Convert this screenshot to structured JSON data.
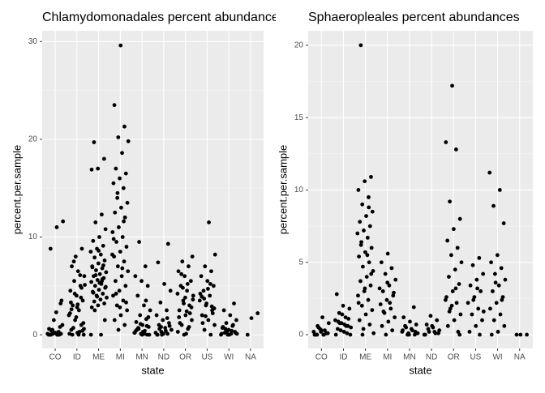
{
  "chart_data": [
    {
      "type": "strip",
      "title": "Chlamydomonadales percent abundances",
      "x_label": "state",
      "y_label": "percent.per.sample",
      "categories": [
        "CO",
        "ID",
        "ME",
        "MI",
        "MN",
        "ND",
        "OR",
        "US",
        "WI",
        "NA"
      ],
      "ylim": [
        -1.4,
        31.1
      ],
      "yticks": [
        0,
        10,
        20,
        30
      ],
      "grid": true,
      "color": "#000000",
      "values": [
        [
          0,
          0,
          0.1,
          0.2,
          0,
          0.3,
          0.5,
          1,
          2.3,
          0,
          0.8,
          1.5,
          0.1,
          0,
          0.4,
          3.5,
          0.2,
          0.6,
          0,
          0.1,
          11.6,
          11,
          8.8,
          3.2
        ],
        [
          0,
          0.2,
          0.5,
          1,
          1.5,
          2,
          2.5,
          3,
          3.5,
          4,
          4.5,
          5,
          5.5,
          6,
          6.5,
          7,
          8.8,
          8,
          0.1,
          0.3,
          0.7,
          1.2,
          2.8,
          3.3,
          3.8,
          4.2,
          5.1,
          0,
          0,
          0.4,
          1.8,
          2.2,
          6.1,
          7.5,
          0.6,
          3.1,
          2.6,
          4.8
        ],
        [
          19.7,
          18,
          17,
          16.9,
          12.3,
          11.5,
          10.8,
          10,
          9.6,
          9.1,
          8.8,
          8.5,
          8.2,
          7.9,
          7.6,
          7.3,
          7,
          6.8,
          6.6,
          6.4,
          6.2,
          6,
          5.8,
          5.6,
          5.4,
          5.2,
          5,
          4.8,
          4.6,
          4.4,
          4.2,
          4,
          3.8,
          3.6,
          3.4,
          3.2,
          3,
          2.8,
          5.5,
          6.1,
          4.9,
          5.3,
          4.3,
          7.1,
          3.9,
          0,
          0,
          2.5,
          1.5,
          8.6,
          6.9,
          5.7
        ],
        [
          29.6,
          23.5,
          21.3,
          20.2,
          19.8,
          18.6,
          17,
          16.5,
          16,
          15.5,
          15,
          14,
          13.5,
          13,
          12.5,
          12,
          11,
          10.5,
          10,
          9.5,
          9,
          8.5,
          8,
          7.5,
          7,
          6.5,
          6,
          5.5,
          5,
          4.5,
          4,
          3.5,
          3,
          2.5,
          2,
          1.5,
          1,
          0.5,
          8.2,
          6.8,
          4.2,
          3.3,
          2.8,
          9.8,
          11.6,
          14.5
        ],
        [
          0,
          0.1,
          0.2,
          0.4,
          0.6,
          0.8,
          1,
          1.3,
          1.6,
          2,
          2.5,
          3,
          4,
          5,
          5.5,
          6,
          7,
          9.5,
          0,
          0.3,
          0.5,
          0.9,
          1.1,
          0.2,
          0.1,
          0.7,
          1.8,
          0,
          0.4,
          3.5
        ],
        [
          0,
          0.1,
          0.3,
          0.5,
          0.7,
          1,
          1.2,
          1.5,
          2,
          2.5,
          3.3,
          4.5,
          5.2,
          7.4,
          9.3,
          0,
          0.2,
          0.4,
          0.6,
          0.9,
          0.1,
          0,
          1.7,
          0.8
        ],
        [
          0,
          0.3,
          0.6,
          1,
          1.5,
          2,
          2.5,
          3,
          3.5,
          4,
          4.5,
          5,
          5.5,
          6,
          6.5,
          7,
          7.5,
          8,
          0.1,
          1.2,
          2.2,
          3.2,
          4.2,
          5.2,
          6.2,
          2.8,
          3.8,
          1.8,
          0.8,
          4.8,
          3.6,
          2.4
        ],
        [
          0,
          0.5,
          1,
          1.5,
          2,
          2.5,
          3,
          3.5,
          4,
          4.5,
          5,
          5.5,
          6,
          6.5,
          7,
          8.2,
          11.5,
          1.2,
          2.2,
          3.2,
          4.2,
          5.2,
          3.7,
          2.7,
          4.7,
          3.9,
          2.9,
          1.9
        ],
        [
          0,
          0.1,
          0.2,
          0.3,
          0.5,
          0.7,
          0.9,
          1.2,
          1.5,
          2,
          2.5,
          3.2,
          0,
          0.1,
          0.4,
          0.6,
          0.2,
          0,
          0.8,
          1,
          0.3,
          0.1
        ],
        [
          0,
          2.2,
          1.7
        ]
      ]
    },
    {
      "type": "strip",
      "title": "Sphaeropleales percent abundances",
      "x_label": "state",
      "y_label": "percent.per.sample",
      "categories": [
        "CO",
        "ID",
        "ME",
        "MI",
        "MN",
        "ND",
        "OR",
        "US",
        "WI",
        "NA"
      ],
      "ylim": [
        -0.95,
        21
      ],
      "yticks": [
        0,
        5,
        10,
        15,
        20
      ],
      "grid": true,
      "color": "#000000",
      "values": [
        [
          0,
          0,
          0.1,
          0.2,
          0,
          0.3,
          0.5,
          0.8,
          1.2,
          0,
          0.1,
          0.4,
          0.2,
          0,
          0.6,
          0.1,
          0.3,
          0
        ],
        [
          0,
          0.2,
          0.4,
          0.6,
          0.8,
          1,
          1.2,
          1.5,
          1.8,
          2,
          2.8,
          0.1,
          0.3,
          0.5,
          0.7,
          0.9,
          1.1,
          1.4,
          0,
          0.6,
          0.8
        ],
        [
          20,
          10.9,
          10.6,
          10,
          9.5,
          9,
          8.5,
          8.2,
          7.8,
          7.5,
          7.2,
          7,
          6.7,
          6.4,
          6,
          5.7,
          5.4,
          5,
          4.7,
          4.4,
          4,
          3.7,
          3.4,
          3,
          2.7,
          2.4,
          2,
          1.7,
          1.4,
          1,
          0.7,
          0.4,
          0.1,
          5.5,
          6.2,
          4.2,
          3.2,
          2.2,
          8.8,
          0
        ],
        [
          5.6,
          5,
          4.6,
          4.2,
          3.8,
          3.4,
          3,
          2.7,
          2.4,
          2.1,
          1.8,
          1.5,
          1.2,
          0.9,
          0.6,
          0.3,
          0,
          3.2,
          2.2,
          1.6,
          2.9,
          3.6
        ],
        [
          0,
          0.1,
          0.2,
          0.3,
          0.5,
          0.7,
          0.9,
          1.2,
          1.9,
          0,
          0.1,
          0.4,
          0.6,
          0.2,
          0,
          0.3
        ],
        [
          0,
          0.1,
          0.2,
          0.3,
          0.5,
          0.7,
          1,
          1.3,
          0,
          0.2,
          0.4,
          0.1,
          0.6
        ],
        [
          17.2,
          13.3,
          12.8,
          9.2,
          8,
          7.3,
          6.5,
          6,
          5.5,
          5,
          4.5,
          4,
          3.5,
          3,
          2.6,
          2.2,
          1.8,
          1.4,
          1,
          0.6,
          0.2,
          2,
          2.4,
          3.2,
          1.6,
          0
        ],
        [
          5.3,
          4.8,
          4.2,
          3.8,
          3.4,
          3,
          2.6,
          2.2,
          1.8,
          1.4,
          1,
          0.6,
          0.2,
          0,
          2.4,
          1.6,
          3.2
        ],
        [
          11.2,
          10,
          8.9,
          7.7,
          5.5,
          5,
          4.6,
          4.2,
          3.8,
          3.4,
          3,
          2.6,
          2.2,
          1.8,
          1.4,
          1,
          0.6,
          0.2,
          0,
          2.4,
          3.6
        ],
        [
          0,
          0,
          0
        ]
      ]
    }
  ]
}
